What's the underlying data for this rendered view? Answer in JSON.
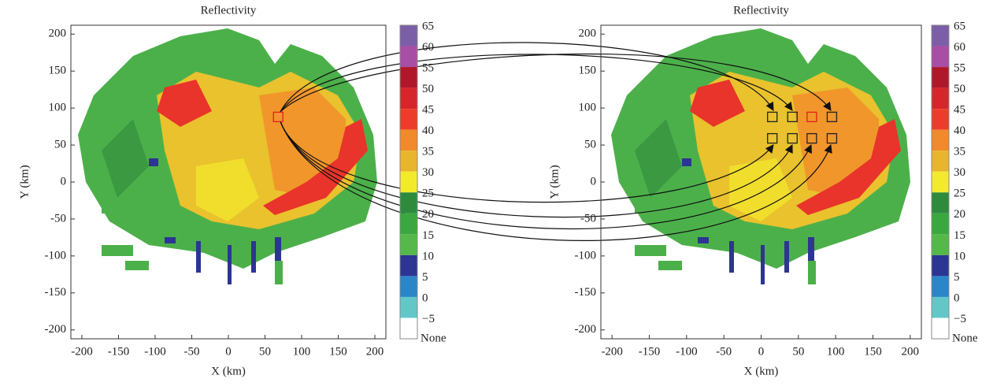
{
  "chart_data": [
    {
      "type": "radar-map",
      "title": "Reflectivity",
      "xlabel": "X (km)",
      "ylabel": "Y (km)",
      "xlim": [
        -215,
        215
      ],
      "ylim": [
        -212,
        212
      ],
      "xticks": [
        -200,
        -150,
        -100,
        -50,
        0,
        50,
        100,
        150,
        200
      ],
      "yticks": [
        -200,
        -150,
        -100,
        -50,
        0,
        50,
        100,
        150,
        200
      ],
      "colorbar": {
        "ticks": [
          65,
          60,
          55,
          50,
          45,
          40,
          35,
          30,
          25,
          20,
          15,
          10,
          5,
          0,
          {
            "value": -5,
            "label": "−5"
          }
        ],
        "none_label": "None",
        "colors": [
          "#7b5ea7",
          "#a94ea5",
          "#b0182a",
          "#d7262b",
          "#ee3c2b",
          "#f08a2a",
          "#e8b52c",
          "#f4ea2c",
          "#2e8b3c",
          "#3aa83f",
          "#55b949",
          "#2c3591",
          "#2b86c8",
          "#63c7c8",
          "#ffffff"
        ]
      },
      "markers": [
        {
          "x": 68,
          "y": 88,
          "color": "#e0201c"
        }
      ]
    },
    {
      "type": "radar-map",
      "title": "Reflectivity",
      "xlabel": "X (km)",
      "ylabel": "Y (km)",
      "xlim": [
        -215,
        215
      ],
      "ylim": [
        -212,
        212
      ],
      "xticks": [
        -200,
        -150,
        -100,
        -50,
        0,
        50,
        100,
        150,
        200
      ],
      "yticks": [
        -200,
        -150,
        -100,
        -50,
        0,
        50,
        100,
        150,
        200
      ],
      "colorbar": {
        "ticks": [
          65,
          60,
          55,
          50,
          45,
          40,
          35,
          30,
          25,
          20,
          15,
          10,
          5,
          0,
          {
            "value": -5,
            "label": "−5"
          }
        ],
        "none_label": "None",
        "colors": [
          "#7b5ea7",
          "#a94ea5",
          "#b0182a",
          "#d7262b",
          "#ee3c2b",
          "#f08a2a",
          "#e8b52c",
          "#f4ea2c",
          "#2e8b3c",
          "#3aa83f",
          "#55b949",
          "#2c3591",
          "#2b86c8",
          "#63c7c8",
          "#ffffff"
        ]
      },
      "markers": [
        {
          "x": 15,
          "y": 88,
          "color": "#222222"
        },
        {
          "x": 42,
          "y": 88,
          "color": "#222222"
        },
        {
          "x": 68,
          "y": 88,
          "color": "#e0201c"
        },
        {
          "x": 95,
          "y": 88,
          "color": "#222222"
        },
        {
          "x": 15,
          "y": 59,
          "color": "#222222"
        },
        {
          "x": 42,
          "y": 59,
          "color": "#222222"
        },
        {
          "x": 68,
          "y": 59,
          "color": "#222222"
        },
        {
          "x": 95,
          "y": 59,
          "color": "#222222"
        }
      ]
    }
  ]
}
